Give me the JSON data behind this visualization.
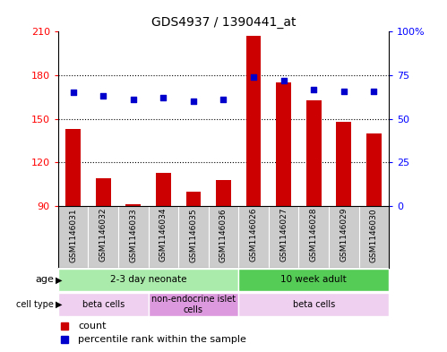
{
  "title": "GDS4937 / 1390441_at",
  "samples": [
    "GSM1146031",
    "GSM1146032",
    "GSM1146033",
    "GSM1146034",
    "GSM1146035",
    "GSM1146036",
    "GSM1146026",
    "GSM1146027",
    "GSM1146028",
    "GSM1146029",
    "GSM1146030"
  ],
  "counts": [
    143,
    109,
    91,
    113,
    100,
    108,
    207,
    175,
    163,
    148,
    140
  ],
  "percentiles": [
    65,
    63,
    61,
    62,
    60,
    61,
    74,
    72,
    67,
    66,
    66
  ],
  "ylim_left": [
    90,
    210
  ],
  "ylim_right": [
    0,
    100
  ],
  "yticks_left": [
    90,
    120,
    150,
    180,
    210
  ],
  "yticks_right": [
    0,
    25,
    50,
    75,
    100
  ],
  "bar_color": "#cc0000",
  "dot_color": "#0000cc",
  "age_groups": [
    {
      "label": "2-3 day neonate",
      "start": 0,
      "end": 6,
      "color": "#aaeaaa"
    },
    {
      "label": "10 week adult",
      "start": 6,
      "end": 11,
      "color": "#55cc55"
    }
  ],
  "cell_type_groups": [
    {
      "label": "beta cells",
      "start": 0,
      "end": 3,
      "color": "#f0d0f0"
    },
    {
      "label": "non-endocrine islet\ncells",
      "start": 3,
      "end": 6,
      "color": "#dd99dd"
    },
    {
      "label": "beta cells",
      "start": 6,
      "end": 11,
      "color": "#f0d0f0"
    }
  ],
  "xlabels_bg": "#cccccc",
  "plot_border_color": "#000000",
  "gridline_color": "#000000",
  "gridline_style": ":"
}
